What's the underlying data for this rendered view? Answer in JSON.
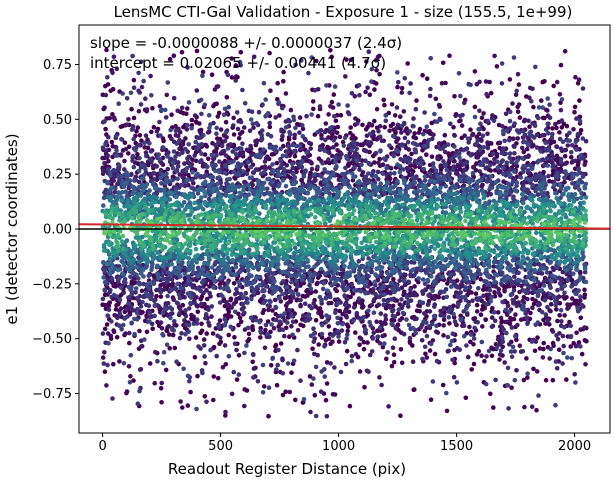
{
  "chart_data": {
    "type": "scatter",
    "title": "LensMC CTI-Gal Validation - Exposure 1 - size (155.5, 1e+99)",
    "xlabel": "Readout Register Distance (pix)",
    "ylabel": "e1 (detector coordinates)",
    "xlim": [
      -100,
      2150
    ],
    "ylim": [
      -0.93,
      0.93
    ],
    "xticks": [
      0,
      500,
      1000,
      1500,
      2000
    ],
    "xtick_labels": [
      "0",
      "500",
      "1000",
      "1500",
      "2000"
    ],
    "yticks": [
      -0.75,
      -0.5,
      -0.25,
      0.0,
      0.25,
      0.5,
      0.75
    ],
    "ytick_labels": [
      "−0.75",
      "−0.50",
      "−0.25",
      "0.00",
      "0.25",
      "0.50",
      "0.75"
    ],
    "grid": false,
    "annotations": {
      "slope": "slope = -0.0000088 +/- 0.0000037 (2.4σ)",
      "intercept": "intercept = 0.02065 +/- 0.00441 (4.7σ)"
    },
    "reference_line": {
      "y": 0.0,
      "color": "#000000"
    },
    "fit_line": {
      "slope": -8.8e-06,
      "intercept": 0.02065,
      "color": "#d62728"
    },
    "points": {
      "count": 9000,
      "x_range": [
        0,
        2050
      ],
      "y_center": 0.0,
      "y_spread": 0.28,
      "colormap": "viridis",
      "sample_outliers": [
        {
          "x": 520,
          "y": -0.85
        },
        {
          "x": 850,
          "y": -0.79
        },
        {
          "x": 250,
          "y": -0.79
        },
        {
          "x": 1960,
          "y": 0.81
        },
        {
          "x": 1470,
          "y": 0.79
        }
      ]
    }
  }
}
